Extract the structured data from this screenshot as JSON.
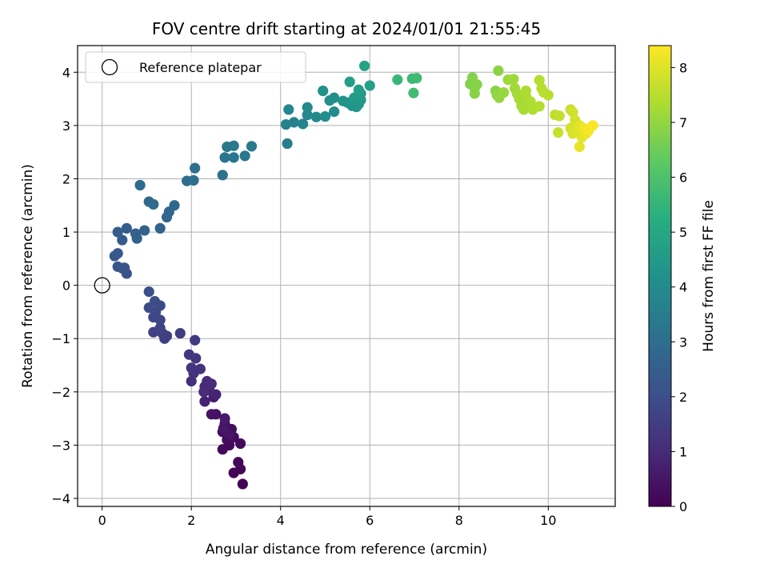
{
  "chart_data": {
    "type": "scatter",
    "title": "FOV centre drift starting at 2024/01/01 21:55:45",
    "xlabel": "Angular distance from reference (arcmin)",
    "ylabel": "Rotation from reference (arcmin)",
    "xlim": [
      -0.55,
      11.5
    ],
    "ylim": [
      -4.15,
      4.5
    ],
    "xticks": [
      0,
      2,
      4,
      6,
      8,
      10
    ],
    "yticks": [
      -4,
      -3,
      -2,
      -1,
      0,
      1,
      2,
      3,
      4
    ],
    "grid": true,
    "legend": {
      "placement": "top-left",
      "entries": [
        "Reference platepar"
      ]
    },
    "reference_point": {
      "x": 0,
      "y": 0
    },
    "colorbar": {
      "label": "Hours from first FF file",
      "range": [
        0,
        8.4
      ],
      "ticks": [
        0,
        1,
        2,
        3,
        4,
        5,
        6,
        7,
        8
      ],
      "colormap": "viridis"
    },
    "points": [
      [
        3.15,
        -3.73,
        0.05
      ],
      [
        2.95,
        -3.52,
        0.1
      ],
      [
        3.1,
        -3.45,
        0.12
      ],
      [
        3.05,
        -3.32,
        0.15
      ],
      [
        2.85,
        -3.0,
        0.18
      ],
      [
        2.7,
        -3.08,
        0.2
      ],
      [
        3.1,
        -2.97,
        0.22
      ],
      [
        2.8,
        -2.9,
        0.25
      ],
      [
        2.95,
        -2.85,
        0.28
      ],
      [
        2.7,
        -2.75,
        0.3
      ],
      [
        2.9,
        -2.7,
        0.33
      ],
      [
        2.75,
        -2.6,
        0.35
      ],
      [
        2.55,
        -2.42,
        0.4
      ],
      [
        2.45,
        -2.42,
        0.45
      ],
      [
        2.85,
        -2.8,
        0.5
      ],
      [
        2.72,
        -2.68,
        0.55
      ],
      [
        2.75,
        -2.5,
        0.6
      ],
      [
        2.5,
        -2.1,
        0.7
      ],
      [
        2.3,
        -2.18,
        0.8
      ],
      [
        2.55,
        -2.05,
        0.85
      ],
      [
        2.4,
        -1.97,
        0.9
      ],
      [
        2.3,
        -1.9,
        0.95
      ],
      [
        2.45,
        -1.85,
        1.0
      ],
      [
        2.35,
        -1.8,
        1.05
      ],
      [
        2.28,
        -2.0,
        1.1
      ],
      [
        2.0,
        -1.8,
        1.15
      ],
      [
        2.05,
        -1.65,
        1.2
      ],
      [
        2.2,
        -1.57,
        1.25
      ],
      [
        2.0,
        -1.55,
        1.3
      ],
      [
        2.1,
        -1.37,
        1.35
      ],
      [
        1.95,
        -1.3,
        1.4
      ],
      [
        2.08,
        -1.03,
        1.45
      ],
      [
        1.75,
        -0.9,
        1.5
      ],
      [
        1.45,
        -0.95,
        1.55
      ],
      [
        1.4,
        -1.0,
        1.6
      ],
      [
        1.35,
        -0.9,
        1.62
      ],
      [
        1.15,
        -0.88,
        1.65
      ],
      [
        1.3,
        -0.8,
        1.7
      ],
      [
        1.3,
        -0.65,
        1.75
      ],
      [
        1.15,
        -0.6,
        1.8
      ],
      [
        1.2,
        -0.5,
        1.85
      ],
      [
        1.3,
        -0.38,
        1.9
      ],
      [
        1.05,
        -0.42,
        1.95
      ],
      [
        1.18,
        -0.3,
        2.0
      ],
      [
        1.05,
        -0.12,
        2.05
      ],
      [
        0.55,
        0.22,
        2.1
      ],
      [
        0.5,
        0.33,
        2.15
      ],
      [
        0.45,
        0.32,
        2.2
      ],
      [
        0.35,
        0.35,
        2.25
      ],
      [
        0.28,
        0.55,
        2.3
      ],
      [
        0.35,
        0.6,
        2.35
      ],
      [
        0.45,
        0.85,
        2.4
      ],
      [
        0.35,
        1.0,
        2.45
      ],
      [
        0.55,
        1.07,
        2.5
      ],
      [
        0.75,
        0.97,
        2.55
      ],
      [
        0.78,
        0.88,
        2.6
      ],
      [
        0.95,
        1.03,
        2.65
      ],
      [
        1.3,
        1.07,
        2.7
      ],
      [
        1.45,
        1.28,
        2.75
      ],
      [
        1.5,
        1.38,
        2.8
      ],
      [
        1.62,
        1.5,
        2.85
      ],
      [
        1.05,
        1.57,
        2.9
      ],
      [
        1.15,
        1.52,
        2.95
      ],
      [
        0.85,
        1.88,
        3.0
      ],
      [
        1.9,
        1.96,
        3.05
      ],
      [
        2.05,
        1.97,
        3.1
      ],
      [
        2.08,
        2.2,
        3.15
      ],
      [
        2.7,
        2.07,
        3.2
      ],
      [
        2.75,
        2.4,
        3.25
      ],
      [
        2.95,
        2.4,
        3.3
      ],
      [
        3.2,
        2.43,
        3.35
      ],
      [
        2.8,
        2.6,
        3.4
      ],
      [
        2.95,
        2.62,
        3.45
      ],
      [
        3.35,
        2.61,
        3.5
      ],
      [
        4.15,
        2.66,
        3.6
      ],
      [
        4.12,
        3.02,
        3.7
      ],
      [
        4.3,
        3.06,
        3.75
      ],
      [
        4.5,
        3.03,
        3.8
      ],
      [
        4.18,
        3.3,
        3.85
      ],
      [
        4.6,
        3.2,
        3.9
      ],
      [
        4.6,
        3.34,
        3.95
      ],
      [
        4.8,
        3.16,
        4.0
      ],
      [
        5.0,
        3.17,
        4.05
      ],
      [
        5.2,
        3.26,
        4.1
      ],
      [
        5.1,
        3.47,
        4.15
      ],
      [
        5.2,
        3.52,
        4.2
      ],
      [
        4.95,
        3.65,
        4.25
      ],
      [
        5.4,
        3.46,
        4.3
      ],
      [
        5.5,
        3.43,
        4.35
      ],
      [
        5.6,
        3.37,
        4.4
      ],
      [
        5.7,
        3.35,
        4.45
      ],
      [
        5.75,
        3.4,
        4.5
      ],
      [
        5.8,
        3.48,
        4.55
      ],
      [
        5.65,
        3.52,
        4.6
      ],
      [
        5.8,
        3.6,
        4.65
      ],
      [
        5.75,
        3.67,
        4.7
      ],
      [
        5.55,
        3.82,
        4.75
      ],
      [
        6.0,
        3.75,
        4.8
      ],
      [
        5.88,
        4.12,
        4.9
      ],
      [
        6.62,
        3.86,
        5.6
      ],
      [
        6.95,
        3.88,
        5.7
      ],
      [
        7.05,
        3.89,
        5.75
      ],
      [
        6.98,
        3.61,
        5.8
      ],
      [
        8.25,
        3.78,
        6.8
      ],
      [
        8.3,
        3.9,
        6.82
      ],
      [
        8.35,
        3.7,
        6.84
      ],
      [
        8.4,
        3.77,
        6.86
      ],
      [
        8.35,
        3.6,
        6.88
      ],
      [
        8.82,
        3.65,
        6.9
      ],
      [
        8.88,
        4.03,
        6.95
      ],
      [
        8.85,
        3.57,
        7.0
      ],
      [
        8.9,
        3.52,
        7.05
      ],
      [
        9.0,
        3.62,
        7.1
      ],
      [
        9.1,
        3.86,
        7.15
      ],
      [
        9.22,
        3.87,
        7.2
      ],
      [
        9.25,
        3.7,
        7.22
      ],
      [
        9.3,
        3.6,
        7.25
      ],
      [
        9.35,
        3.5,
        7.28
      ],
      [
        9.4,
        3.37,
        7.3
      ],
      [
        9.45,
        3.3,
        7.32
      ],
      [
        9.5,
        3.55,
        7.35
      ],
      [
        9.5,
        3.65,
        7.38
      ],
      [
        9.6,
        3.45,
        7.4
      ],
      [
        9.65,
        3.3,
        7.42
      ],
      [
        9.8,
        3.36,
        7.45
      ],
      [
        9.8,
        3.85,
        7.48
      ],
      [
        9.85,
        3.7,
        7.5
      ],
      [
        9.9,
        3.62,
        7.52
      ],
      [
        10.0,
        3.57,
        7.55
      ],
      [
        10.15,
        3.2,
        7.6
      ],
      [
        10.25,
        3.18,
        7.65
      ],
      [
        10.22,
        2.87,
        7.7
      ],
      [
        10.5,
        3.3,
        7.75
      ],
      [
        10.55,
        3.25,
        7.8
      ],
      [
        10.6,
        3.1,
        7.85
      ],
      [
        10.5,
        2.95,
        7.9
      ],
      [
        10.55,
        2.85,
        7.95
      ],
      [
        10.65,
        2.9,
        8.0
      ],
      [
        10.7,
        3.0,
        8.05
      ],
      [
        10.75,
        2.78,
        8.1
      ],
      [
        10.7,
        2.6,
        8.15
      ],
      [
        10.85,
        2.85,
        8.2
      ],
      [
        10.8,
        2.95,
        8.25
      ],
      [
        10.9,
        2.9,
        8.3
      ],
      [
        11.0,
        3.0,
        8.35
      ]
    ]
  }
}
